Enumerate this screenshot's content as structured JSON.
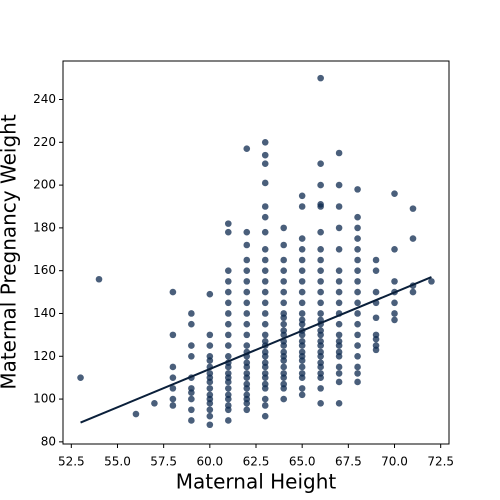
{
  "chart_data": {
    "type": "scatter",
    "xlabel": "Maternal Height",
    "ylabel": "Maternal Pregnancy Weight",
    "xlim": [
      52.05,
      72.95
    ],
    "ylim": [
      79,
      258
    ],
    "xticks": [
      52.5,
      {
        "value": 55,
        "label": "55.0"
      },
      57.5,
      {
        "value": 60,
        "label": "60.0"
      },
      62.5,
      {
        "value": 65,
        "label": "65.0"
      },
      67.5,
      {
        "value": 70,
        "label": "70.0"
      },
      72.5
    ],
    "yticks": [
      80,
      100,
      120,
      140,
      160,
      180,
      200,
      220,
      240
    ],
    "color": "#0d2a4f",
    "line_color": "#0a1f3a",
    "fit": {
      "x": [
        53,
        72
      ],
      "y": [
        89,
        157
      ]
    },
    "points": [
      [
        53,
        110
      ],
      [
        54,
        156
      ],
      [
        56,
        93
      ],
      [
        57,
        98
      ],
      [
        58,
        150
      ],
      [
        58,
        130
      ],
      [
        58,
        115
      ],
      [
        58,
        110
      ],
      [
        58,
        105
      ],
      [
        58,
        100
      ],
      [
        58,
        97
      ],
      [
        59,
        140
      ],
      [
        59,
        135
      ],
      [
        59,
        125
      ],
      [
        59,
        120
      ],
      [
        59,
        110
      ],
      [
        59,
        105
      ],
      [
        59,
        103
      ],
      [
        59,
        100
      ],
      [
        59,
        95
      ],
      [
        59,
        90
      ],
      [
        60,
        149
      ],
      [
        60,
        130
      ],
      [
        60,
        125
      ],
      [
        60,
        120
      ],
      [
        60,
        118
      ],
      [
        60,
        115
      ],
      [
        60,
        112
      ],
      [
        60,
        110
      ],
      [
        60,
        108
      ],
      [
        60,
        105
      ],
      [
        60,
        102
      ],
      [
        60,
        100
      ],
      [
        60,
        98
      ],
      [
        60,
        95
      ],
      [
        60,
        92
      ],
      [
        60,
        88
      ],
      [
        61,
        182
      ],
      [
        61,
        178
      ],
      [
        61,
        160
      ],
      [
        61,
        155
      ],
      [
        61,
        150
      ],
      [
        61,
        145
      ],
      [
        61,
        140
      ],
      [
        61,
        135
      ],
      [
        61,
        130
      ],
      [
        61,
        125
      ],
      [
        61,
        120
      ],
      [
        61,
        117
      ],
      [
        61,
        115
      ],
      [
        61,
        112
      ],
      [
        61,
        110
      ],
      [
        61,
        108
      ],
      [
        61,
        105
      ],
      [
        61,
        102
      ],
      [
        61,
        100
      ],
      [
        61,
        97
      ],
      [
        61,
        95
      ],
      [
        61,
        90
      ],
      [
        62,
        217
      ],
      [
        62,
        178
      ],
      [
        62,
        172
      ],
      [
        62,
        165
      ],
      [
        62,
        160
      ],
      [
        62,
        155
      ],
      [
        62,
        150
      ],
      [
        62,
        145
      ],
      [
        62,
        140
      ],
      [
        62,
        135
      ],
      [
        62,
        130
      ],
      [
        62,
        125
      ],
      [
        62,
        122
      ],
      [
        62,
        120
      ],
      [
        62,
        117
      ],
      [
        62,
        115
      ],
      [
        62,
        112
      ],
      [
        62,
        110
      ],
      [
        62,
        107
      ],
      [
        62,
        105
      ],
      [
        62,
        102
      ],
      [
        62,
        100
      ],
      [
        62,
        98
      ],
      [
        62,
        95
      ],
      [
        63,
        220
      ],
      [
        63,
        214
      ],
      [
        63,
        210
      ],
      [
        63,
        201
      ],
      [
        63,
        190
      ],
      [
        63,
        185
      ],
      [
        63,
        178
      ],
      [
        63,
        170
      ],
      [
        63,
        165
      ],
      [
        63,
        160
      ],
      [
        63,
        155
      ],
      [
        63,
        150
      ],
      [
        63,
        145
      ],
      [
        63,
        140
      ],
      [
        63,
        135
      ],
      [
        63,
        130
      ],
      [
        63,
        127
      ],
      [
        63,
        125
      ],
      [
        63,
        122
      ],
      [
        63,
        120
      ],
      [
        63,
        117
      ],
      [
        63,
        115
      ],
      [
        63,
        112
      ],
      [
        63,
        110
      ],
      [
        63,
        107
      ],
      [
        63,
        105
      ],
      [
        63,
        100
      ],
      [
        63,
        97
      ],
      [
        63,
        92
      ],
      [
        64,
        180
      ],
      [
        64,
        172
      ],
      [
        64,
        165
      ],
      [
        64,
        160
      ],
      [
        64,
        155
      ],
      [
        64,
        150
      ],
      [
        64,
        145
      ],
      [
        64,
        140
      ],
      [
        64,
        138
      ],
      [
        64,
        135
      ],
      [
        64,
        132
      ],
      [
        64,
        130
      ],
      [
        64,
        127
      ],
      [
        64,
        125
      ],
      [
        64,
        122
      ],
      [
        64,
        120
      ],
      [
        64,
        118
      ],
      [
        64,
        115
      ],
      [
        64,
        112
      ],
      [
        64,
        110
      ],
      [
        64,
        107
      ],
      [
        64,
        105
      ],
      [
        64,
        100
      ],
      [
        65,
        195
      ],
      [
        65,
        190
      ],
      [
        65,
        175
      ],
      [
        65,
        170
      ],
      [
        65,
        165
      ],
      [
        65,
        160
      ],
      [
        65,
        155
      ],
      [
        65,
        150
      ],
      [
        65,
        145
      ],
      [
        65,
        140
      ],
      [
        65,
        137
      ],
      [
        65,
        135
      ],
      [
        65,
        132
      ],
      [
        65,
        130
      ],
      [
        65,
        127
      ],
      [
        65,
        125
      ],
      [
        65,
        122
      ],
      [
        65,
        120
      ],
      [
        65,
        118
      ],
      [
        65,
        115
      ],
      [
        65,
        112
      ],
      [
        65,
        110
      ],
      [
        65,
        105
      ],
      [
        65,
        102
      ],
      [
        66,
        250
      ],
      [
        66,
        210
      ],
      [
        66,
        200
      ],
      [
        66,
        191
      ],
      [
        66,
        190
      ],
      [
        66,
        178
      ],
      [
        66,
        170
      ],
      [
        66,
        165
      ],
      [
        66,
        160
      ],
      [
        66,
        155
      ],
      [
        66,
        150
      ],
      [
        66,
        145
      ],
      [
        66,
        140
      ],
      [
        66,
        137
      ],
      [
        66,
        135
      ],
      [
        66,
        132
      ],
      [
        66,
        130
      ],
      [
        66,
        127
      ],
      [
        66,
        125
      ],
      [
        66,
        122
      ],
      [
        66,
        120
      ],
      [
        66,
        117
      ],
      [
        66,
        115
      ],
      [
        66,
        112
      ],
      [
        66,
        110
      ],
      [
        66,
        105
      ],
      [
        66,
        98
      ],
      [
        67,
        215
      ],
      [
        67,
        200
      ],
      [
        67,
        190
      ],
      [
        67,
        180
      ],
      [
        67,
        170
      ],
      [
        67,
        160
      ],
      [
        67,
        155
      ],
      [
        67,
        150
      ],
      [
        67,
        145
      ],
      [
        67,
        140
      ],
      [
        67,
        135
      ],
      [
        67,
        130
      ],
      [
        67,
        127
      ],
      [
        67,
        125
      ],
      [
        67,
        122
      ],
      [
        67,
        120
      ],
      [
        67,
        115
      ],
      [
        67,
        112
      ],
      [
        67,
        108
      ],
      [
        67,
        98
      ],
      [
        68,
        198
      ],
      [
        68,
        185
      ],
      [
        68,
        180
      ],
      [
        68,
        175
      ],
      [
        68,
        170
      ],
      [
        68,
        165
      ],
      [
        68,
        160
      ],
      [
        68,
        155
      ],
      [
        68,
        150
      ],
      [
        68,
        145
      ],
      [
        68,
        140
      ],
      [
        68,
        135
      ],
      [
        68,
        130
      ],
      [
        68,
        125
      ],
      [
        68,
        120
      ],
      [
        68,
        115
      ],
      [
        68,
        112
      ],
      [
        68,
        108
      ],
      [
        69,
        165
      ],
      [
        69,
        160
      ],
      [
        69,
        150
      ],
      [
        69,
        145
      ],
      [
        69,
        138
      ],
      [
        69,
        130
      ],
      [
        69,
        128
      ],
      [
        69,
        125
      ],
      [
        69,
        123
      ],
      [
        70,
        196
      ],
      [
        70,
        170
      ],
      [
        70,
        155
      ],
      [
        70,
        150
      ],
      [
        70,
        145
      ],
      [
        70,
        140
      ],
      [
        70,
        137
      ],
      [
        71,
        189
      ],
      [
        71,
        175
      ],
      [
        71,
        153
      ],
      [
        71,
        150
      ],
      [
        72,
        155
      ]
    ]
  }
}
